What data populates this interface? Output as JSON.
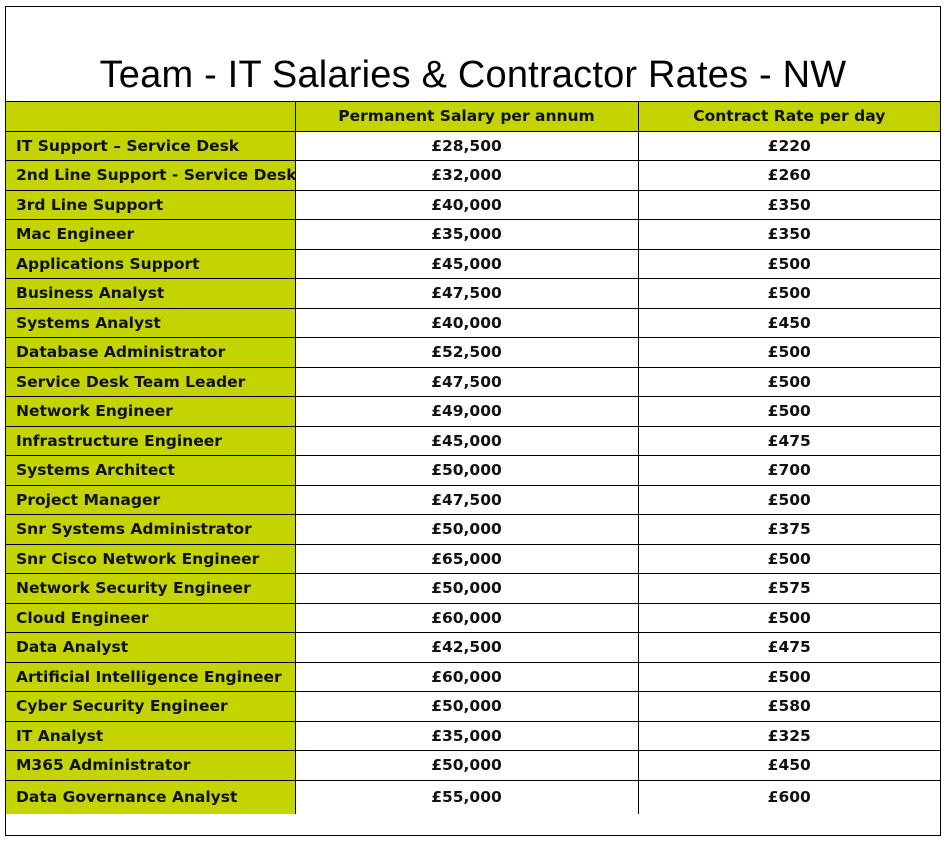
{
  "title": "Team - IT Salaries & Contractor Rates - NW",
  "colors": {
    "accent_green": "#c4d400",
    "border": "#000000",
    "text": "#111111"
  },
  "table": {
    "headers": [
      "",
      "Permanent Salary per annum",
      "Contract Rate per day"
    ],
    "rows": [
      {
        "role": "IT Support – Service Desk",
        "salary": "£28,500",
        "rate": "£220"
      },
      {
        "role": "2nd Line Support - Service Desk",
        "salary": "£32,000",
        "rate": "£260"
      },
      {
        "role": "3rd Line Support",
        "salary": "£40,000",
        "rate": "£350"
      },
      {
        "role": "Mac Engineer",
        "salary": "£35,000",
        "rate": "£350"
      },
      {
        "role": "Applications Support",
        "salary": "£45,000",
        "rate": "£500"
      },
      {
        "role": "Business Analyst",
        "salary": "£47,500",
        "rate": "£500"
      },
      {
        "role": "Systems Analyst",
        "salary": "£40,000",
        "rate": "£450"
      },
      {
        "role": "Database Administrator",
        "salary": "£52,500",
        "rate": "£500"
      },
      {
        "role": "Service Desk Team Leader",
        "salary": "£47,500",
        "rate": "£500"
      },
      {
        "role": "Network Engineer",
        "salary": "£49,000",
        "rate": "£500"
      },
      {
        "role": "Infrastructure Engineer",
        "salary": "£45,000",
        "rate": "£475"
      },
      {
        "role": "Systems Architect",
        "salary": "£50,000",
        "rate": "£700"
      },
      {
        "role": "Project Manager",
        "salary": "£47,500",
        "rate": "£500"
      },
      {
        "role": "Snr Systems Administrator",
        "salary": "£50,000",
        "rate": "£375"
      },
      {
        "role": "Snr Cisco Network Engineer",
        "salary": "£65,000",
        "rate": "£500"
      },
      {
        "role": "Network Security Engineer",
        "salary": "£50,000",
        "rate": "£575"
      },
      {
        "role": "Cloud Engineer",
        "salary": "£60,000",
        "rate": "£500"
      },
      {
        "role": "Data Analyst",
        "salary": "£42,500",
        "rate": "£475"
      },
      {
        "role": "Artificial Intelligence Engineer",
        "salary": "£60,000",
        "rate": "£500"
      },
      {
        "role": "Cyber Security Engineer",
        "salary": "£50,000",
        "rate": "£580"
      },
      {
        "role": "IT Analyst",
        "salary": "£35,000",
        "rate": "£325"
      },
      {
        "role": "M365 Administrator",
        "salary": "£50,000",
        "rate": "£450"
      },
      {
        "role": "Data Governance Analyst",
        "salary": "£55,000",
        "rate": "£600"
      }
    ]
  }
}
